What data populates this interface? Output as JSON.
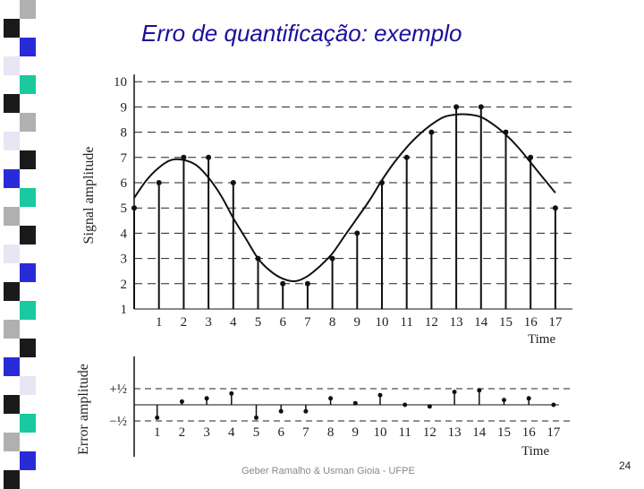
{
  "slide": {
    "title": "Erro de quantificação: exemplo",
    "footer": "Geber Ramalho & Usman Gioia - UFPE",
    "page_number": "24"
  },
  "colors": {
    "title": "#1a0f9c",
    "stripe": [
      "#b0b0b0",
      "#1a1a1a",
      "#2a2ad8",
      "#e6e6f4",
      "#19c99f"
    ]
  },
  "chart_data": [
    {
      "type": "line",
      "title": "",
      "xlabel": "Time",
      "ylabel": "Signal amplitude",
      "x_ticks": [
        "1",
        "2",
        "3",
        "4",
        "5",
        "6",
        "7",
        "8",
        "9",
        "10",
        "11",
        "12",
        "13",
        "14",
        "15",
        "16",
        "17"
      ],
      "y_ticks": [
        "1",
        "2",
        "3",
        "4",
        "5",
        "6",
        "7",
        "8",
        "9",
        "10"
      ],
      "xlim": [
        0,
        17
      ],
      "ylim": [
        1,
        10
      ],
      "grid": "dashed horizontal lines at each integer level",
      "series": [
        {
          "style": "continuous curve",
          "x": [
            0,
            0.5,
            1,
            1.5,
            2,
            2.5,
            3,
            3.5,
            4,
            4.5,
            5,
            5.5,
            6,
            6.5,
            7,
            7.5,
            8,
            8.5,
            9,
            9.5,
            10,
            10.5,
            11,
            11.5,
            12,
            12.5,
            13,
            13.5,
            14,
            14.5,
            15,
            15.5,
            16,
            16.5,
            17
          ],
          "y": [
            5.4,
            6.1,
            6.6,
            6.9,
            6.9,
            6.7,
            6.2,
            5.5,
            4.6,
            3.8,
            3.0,
            2.5,
            2.2,
            2.1,
            2.3,
            2.7,
            3.2,
            3.9,
            4.6,
            5.3,
            6.1,
            6.8,
            7.4,
            7.9,
            8.3,
            8.6,
            8.7,
            8.7,
            8.6,
            8.3,
            7.9,
            7.4,
            6.8,
            6.2,
            5.6
          ]
        },
        {
          "style": "quantized samples",
          "x": [
            0,
            1,
            2,
            3,
            4,
            5,
            6,
            7,
            8,
            9,
            10,
            11,
            12,
            13,
            14,
            15,
            16,
            17
          ],
          "y": [
            5,
            6,
            7,
            7,
            6,
            3,
            2,
            2,
            3,
            4,
            6,
            7,
            8,
            9,
            9,
            8,
            7,
            5
          ]
        }
      ]
    },
    {
      "type": "scatter",
      "title": "",
      "xlabel": "Time",
      "ylabel": "Error amplitude",
      "x_ticks": [
        "1",
        "2",
        "3",
        "4",
        "5",
        "6",
        "7",
        "8",
        "9",
        "10",
        "11",
        "12",
        "13",
        "14",
        "15",
        "16",
        "17"
      ],
      "y_ticks": [
        "+½",
        "−½"
      ],
      "ylim": [
        -0.5,
        0.5
      ],
      "series": [
        {
          "style": "error stems",
          "x": [
            1,
            2,
            3,
            4,
            5,
            6,
            7,
            8,
            9,
            10,
            11,
            12,
            13,
            14,
            15,
            16,
            17
          ],
          "y": [
            -0.4,
            0.1,
            0.2,
            0.35,
            -0.4,
            -0.2,
            -0.2,
            0.2,
            0.05,
            0.3,
            0.0,
            -0.05,
            0.4,
            0.45,
            0.15,
            0.2,
            0.0
          ]
        }
      ]
    }
  ]
}
